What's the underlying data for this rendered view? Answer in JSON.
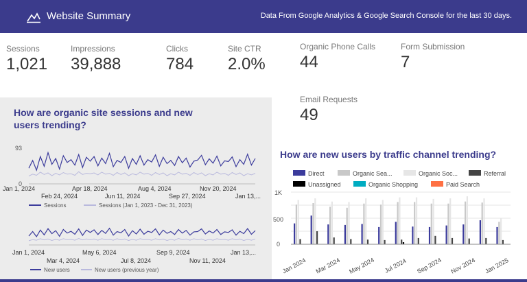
{
  "header": {
    "title": "Website Summary",
    "subtitle": "Data From Google Analytics & Google Search Console for the last 30 days."
  },
  "kpis": [
    {
      "label": "Sessions",
      "value": "1,021"
    },
    {
      "label": "Impressions",
      "value": "39,888"
    },
    {
      "label": "Clicks",
      "value": "784"
    },
    {
      "label": "Site CTR",
      "value": "2.0%"
    },
    {
      "label": "Organic Phone Calls",
      "value": "44"
    },
    {
      "label": "Form Submission",
      "value": "7"
    },
    {
      "label": "Email Requests",
      "value": "49"
    }
  ],
  "sessions_chart": {
    "title": "How are organic site sessions and new users trending?",
    "y_max_label": "93",
    "y_min_label": "0",
    "x_ticks_row1": [
      "Jan 1, 2024",
      "Apr 18, 2024",
      "Aug 4, 2024",
      "Nov 20, 2024"
    ],
    "x_ticks_row2": [
      "Feb 24, 2024",
      "Jun 11, 2024",
      "Sep 27, 2024",
      "Jan 13,..."
    ],
    "legend": [
      "Sessions",
      "Sessions (Jan 1, 2023 - Dec 31, 2023)"
    ],
    "colors": {
      "primary": "#3b3b9c",
      "secondary": "#b9b9dd"
    }
  },
  "newusers_chart": {
    "x_ticks_row1": [
      "Jan 1, 2024",
      "May 6, 2024",
      "Sep 9, 2024",
      "Jan 13,..."
    ],
    "x_ticks_row2": [
      "Mar 4, 2024",
      "Jul 8, 2024",
      "Nov 11, 2024"
    ],
    "legend": [
      "New users",
      "New users (previous year)"
    ]
  },
  "channel_chart": {
    "title": "How are new users by traffic channel trending?",
    "legend": [
      {
        "name": "Direct",
        "color": "#3b3b9c"
      },
      {
        "name": "Organic Sea...",
        "color": "#c8c8c8"
      },
      {
        "name": "Organic Soc...",
        "color": "#e6e6e6"
      },
      {
        "name": "Referral",
        "color": "#444444"
      },
      {
        "name": "Unassigned",
        "color": "#000000"
      },
      {
        "name": "Organic Shopping",
        "color": "#00acc1"
      },
      {
        "name": "Paid Search",
        "color": "#ff7043"
      }
    ],
    "y_ticks": [
      "1K",
      "500",
      "0"
    ],
    "x_ticks": [
      "Jan 2024",
      "Mar 2024",
      "May 2024",
      "Jul 2024",
      "Sep 2024",
      "Nov 2024",
      "Jan 2025"
    ]
  },
  "chart_data": [
    {
      "type": "line",
      "title": "How are organic site sessions and new users trending?",
      "ylim": [
        0,
        93
      ],
      "series": [
        {
          "name": "Sessions",
          "values": [
            40,
            60,
            35,
            70,
            45,
            80,
            50,
            65,
            38,
            72,
            55,
            62,
            48,
            75,
            42,
            68,
            58,
            70,
            46,
            66,
            52,
            78,
            44,
            60,
            55,
            70,
            40,
            65,
            50,
            72,
            48,
            62,
            56,
            74,
            45,
            68,
            52,
            60,
            47,
            70,
            54,
            66,
            43,
            58,
            61,
            73,
            49,
            64,
            53,
            71,
            46,
            59,
            57,
            69,
            44,
            62,
            50,
            76,
            48,
            65
          ]
        },
        {
          "name": "Sessions (Jan 1, 2023 - Dec 31, 2023)",
          "values": [
            20,
            25,
            22,
            30,
            24,
            28,
            21,
            27,
            23,
            29,
            25,
            26,
            22,
            31,
            24,
            27,
            26,
            28,
            23,
            30,
            25,
            27,
            22,
            29,
            24,
            28,
            21,
            26,
            23,
            30,
            25,
            27,
            22,
            29,
            24,
            28,
            21,
            26,
            23,
            30,
            25,
            27,
            22,
            29,
            24,
            28,
            21,
            26,
            23,
            30,
            25,
            27,
            22,
            29,
            24,
            28,
            21,
            26,
            23,
            27
          ]
        }
      ]
    },
    {
      "type": "line",
      "series": [
        {
          "name": "New users",
          "values": [
            30,
            45,
            28,
            50,
            34,
            55,
            38,
            48,
            29,
            52,
            40,
            46,
            36,
            54,
            32,
            50,
            42,
            51,
            35,
            49,
            39,
            56,
            33,
            45,
            41,
            52,
            30,
            48,
            37,
            53,
            36,
            46,
            42,
            54,
            34,
            50,
            39,
            45,
            35,
            52,
            40,
            49,
            33,
            44,
            45,
            54,
            37,
            47,
            40,
            52,
            35,
            44,
            42,
            51,
            33,
            46,
            38,
            55,
            36,
            48
          ]
        },
        {
          "name": "New users (previous year)",
          "values": [
            14,
            18,
            16,
            21,
            17,
            20,
            15,
            19,
            16,
            21,
            18,
            19,
            16,
            22,
            17,
            20,
            18,
            20,
            16,
            21,
            18,
            19,
            16,
            21,
            17,
            20,
            15,
            19,
            16,
            21,
            18,
            19,
            16,
            21,
            17,
            20,
            15,
            19,
            16,
            22,
            18,
            20,
            16,
            21,
            17,
            20,
            15,
            19,
            16,
            21,
            18,
            19,
            16,
            21,
            17,
            20,
            15,
            19,
            16,
            20
          ]
        }
      ]
    },
    {
      "type": "bar",
      "title": "How are new users by traffic channel trending?",
      "ylim": [
        0,
        1000
      ],
      "categories": [
        "Jan 2024",
        "Feb 2024",
        "Mar 2024",
        "Apr 2024",
        "May 2024",
        "Jun 2024",
        "Jul 2024",
        "Aug 2024",
        "Sep 2024",
        "Oct 2024",
        "Nov 2024",
        "Dec 2024",
        "Jan 2025"
      ],
      "series": [
        {
          "name": "Direct",
          "values": [
            400,
            550,
            380,
            370,
            390,
            330,
            430,
            340,
            330,
            360,
            380,
            460,
            330
          ]
        },
        {
          "name": "Organic Sea...",
          "values": [
            760,
            790,
            720,
            700,
            780,
            760,
            810,
            810,
            780,
            780,
            820,
            800,
            430
          ]
        },
        {
          "name": "Organic Soc...",
          "values": [
            850,
            880,
            820,
            810,
            880,
            850,
            900,
            900,
            870,
            880,
            920,
            880,
            500
          ]
        },
        {
          "name": "Referral",
          "values": [
            100,
            250,
            130,
            100,
            90,
            80,
            90,
            120,
            160,
            120,
            110,
            120,
            80
          ]
        },
        {
          "name": "Unassigned",
          "values": [
            0,
            0,
            0,
            0,
            0,
            0,
            40,
            0,
            0,
            0,
            0,
            0,
            0
          ]
        },
        {
          "name": "Organic Shopping",
          "values": [
            0,
            0,
            0,
            0,
            0,
            0,
            0,
            0,
            0,
            0,
            0,
            0,
            0
          ]
        },
        {
          "name": "Paid Search",
          "values": [
            0,
            0,
            0,
            0,
            0,
            0,
            0,
            0,
            0,
            0,
            0,
            0,
            0
          ]
        }
      ]
    }
  ]
}
